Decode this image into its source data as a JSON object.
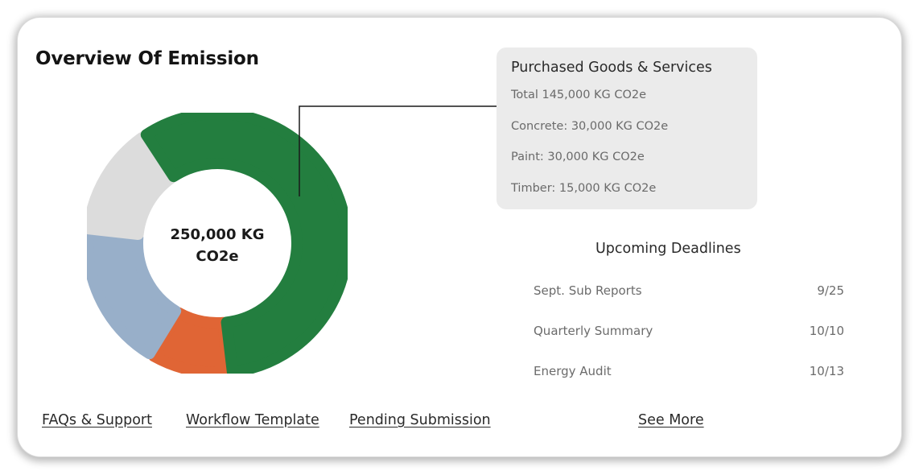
{
  "title": "Overview Of Emission",
  "chart_data": {
    "type": "pie",
    "center_label": "250,000 KG CO2e",
    "slices": [
      {
        "value": 145000,
        "color": "#237e3f"
      },
      {
        "value": 25000,
        "color": "#e06535"
      },
      {
        "value": 45000,
        "color": "#98afc9"
      },
      {
        "value": 35000,
        "color": "#dcdcdc"
      }
    ]
  },
  "tooltip": {
    "heading": "Purchased Goods & Services",
    "lines": [
      "Total 145,000 KG CO2e",
      "Concrete: 30,000 KG CO2e",
      "Paint: 30,000 KG CO2e",
      "Timber: 15,000 KG CO2e"
    ]
  },
  "deadlines": {
    "title": "Upcoming Deadlines",
    "items": [
      {
        "name": "Sept. Sub Reports",
        "date": "9/25"
      },
      {
        "name": "Quarterly Summary",
        "date": "10/10"
      },
      {
        "name": "Energy Audit",
        "date": "10/13"
      }
    ]
  },
  "links": {
    "faqs": "FAQs & Support",
    "workflow": "Workflow Template",
    "pending": "Pending Submission",
    "see_more": "See More"
  }
}
